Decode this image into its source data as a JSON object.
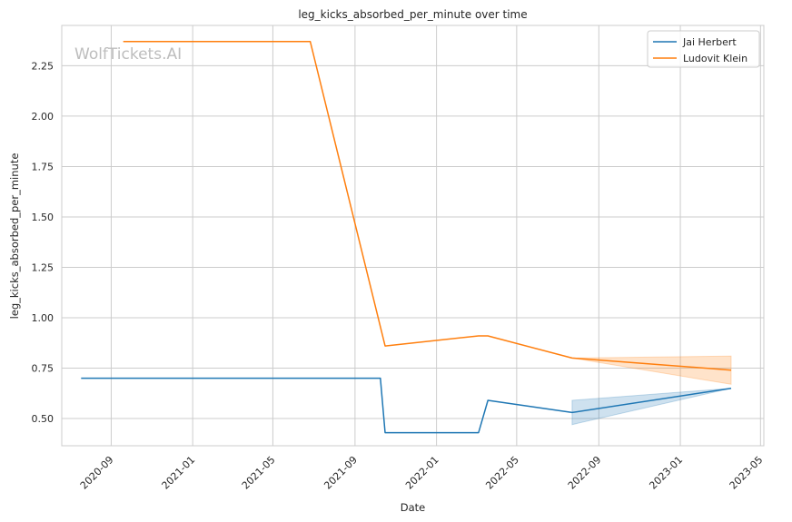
{
  "chart_data": {
    "type": "line",
    "title": "leg_kicks_absorbed_per_minute over time",
    "xlabel": "Date",
    "ylabel": "leg_kicks_absorbed_per_minute",
    "watermark": "WolfTickets.AI",
    "x_ticks": [
      "2020-09",
      "2021-01",
      "2021-05",
      "2021-09",
      "2022-01",
      "2022-05",
      "2022-09",
      "2023-01",
      "2023-05"
    ],
    "y_ticks": [
      "0.50",
      "0.75",
      "1.00",
      "1.25",
      "1.50",
      "1.75",
      "2.00",
      "2.25"
    ],
    "xlim": [
      "2020-06-19",
      "2023-05-06"
    ],
    "ylim": [
      0.365,
      2.45
    ],
    "grid": true,
    "legend_position": "top-right",
    "series": [
      {
        "name": "Jai Herbert",
        "color": "#1f77b4",
        "x": [
          "2020-07-18",
          "2021-10-09",
          "2021-10-16",
          "2022-03-05",
          "2022-03-19",
          "2022-07-23",
          "2023-03-18"
        ],
        "y": [
          0.7,
          0.7,
          0.43,
          0.43,
          0.59,
          0.53,
          0.65
        ],
        "band": {
          "x": [
            "2022-07-23",
            "2023-03-18"
          ],
          "lower": [
            0.47,
            0.65
          ],
          "upper": [
            0.59,
            0.65
          ]
        }
      },
      {
        "name": "Ludovit Klein",
        "color": "#ff7f0e",
        "x": [
          "2020-09-19",
          "2021-06-26",
          "2021-10-16",
          "2022-03-05",
          "2022-03-19",
          "2022-07-23",
          "2023-03-18"
        ],
        "y": [
          2.37,
          2.37,
          0.86,
          0.91,
          0.91,
          0.8,
          0.74
        ],
        "band": {
          "x": [
            "2022-07-23",
            "2023-03-18"
          ],
          "lower": [
            0.8,
            0.67
          ],
          "upper": [
            0.8,
            0.81
          ]
        }
      }
    ]
  }
}
